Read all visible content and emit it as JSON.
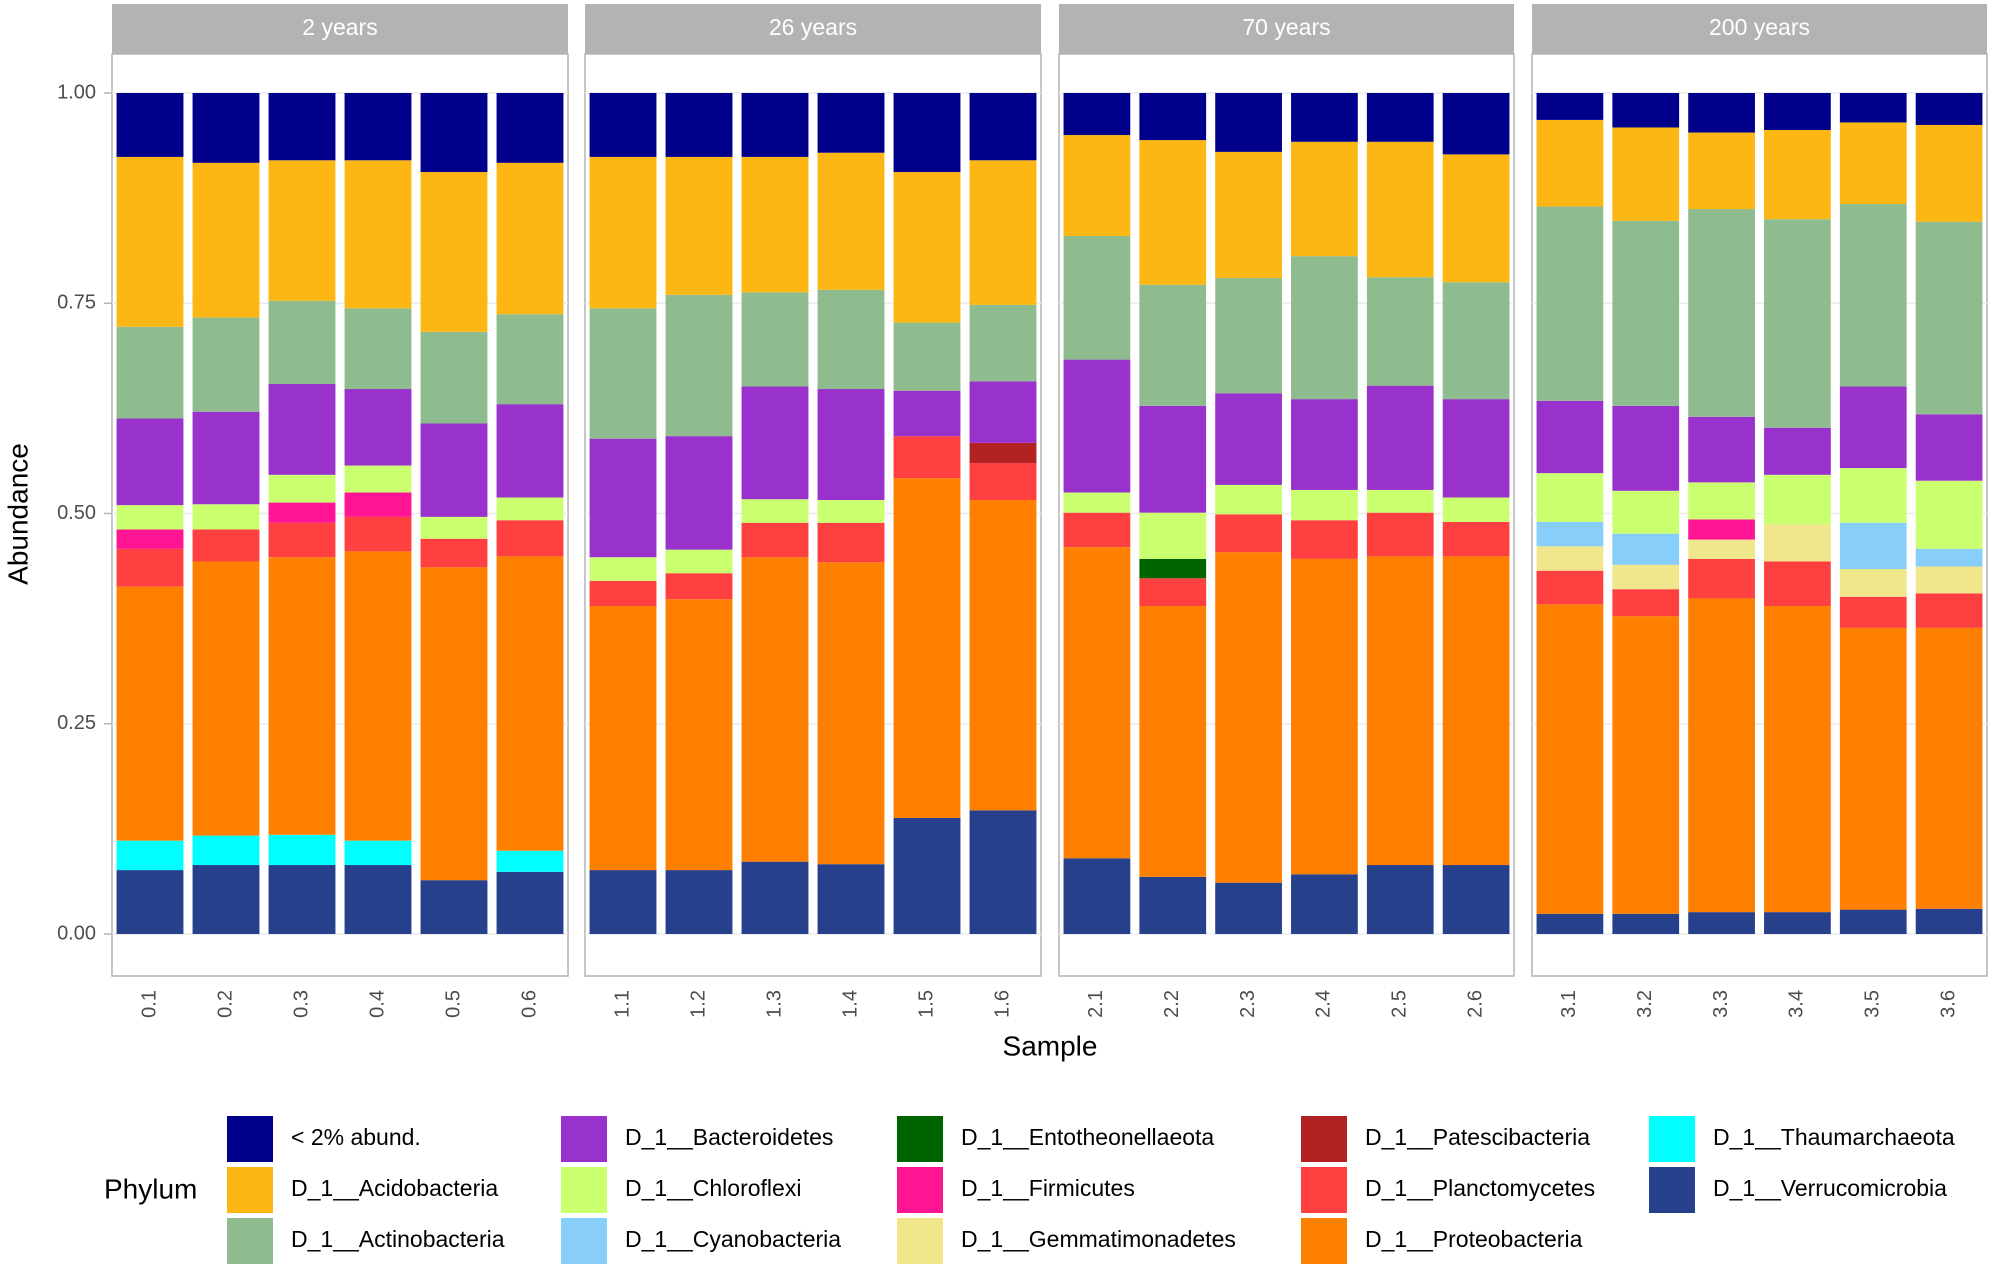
{
  "chart_data": {
    "type": "bar",
    "stacked": true,
    "y_label": "Abundance",
    "x_label": "Sample",
    "legend_title": "Phylum",
    "ylim": [
      0,
      1.0
    ],
    "yticks": [
      {
        "value": 0,
        "label": "0.00"
      },
      {
        "value": 0.25,
        "label": "0.25"
      },
      {
        "value": 0.5,
        "label": "0.50"
      },
      {
        "value": 0.75,
        "label": "0.75"
      },
      {
        "value": 1.0,
        "label": "1.00"
      }
    ],
    "grid": true,
    "facets": [
      {
        "title": "2 years",
        "categories": [
          "0.1",
          "0.2",
          "0.3",
          "0.4",
          "0.5",
          "0.6"
        ],
        "series": [
          {
            "name": "< 2% abund.",
            "color": "#00008B",
            "values": [
              0.076,
              0.083,
              0.08,
              0.08,
              0.094,
              0.083
            ]
          },
          {
            "name": "D_1__Acidobacteria",
            "color": "#FDB714",
            "values": [
              0.202,
              0.184,
              0.167,
              0.176,
              0.19,
              0.18
            ]
          },
          {
            "name": "D_1__Actinobacteria",
            "color": "#8FBC8F",
            "values": [
              0.109,
              0.112,
              0.099,
              0.096,
              0.109,
              0.107
            ]
          },
          {
            "name": "D_1__Bacteroidetes",
            "color": "#9932CC",
            "values": [
              0.103,
              0.11,
              0.108,
              0.091,
              0.111,
              0.111
            ]
          },
          {
            "name": "D_1__Chloroflexi",
            "color": "#CAFF70",
            "values": [
              0.029,
              0.03,
              0.033,
              0.032,
              0.026,
              0.027
            ]
          },
          {
            "name": "D_1__Cyanobacteria",
            "color": "#87CEFA",
            "values": [
              0,
              0,
              0,
              0,
              0,
              0
            ]
          },
          {
            "name": "D_1__Entotheonellaeota",
            "color": "#006400",
            "values": [
              0,
              0,
              0,
              0,
              0,
              0
            ]
          },
          {
            "name": "D_1__Firmicutes",
            "color": "#FF1493",
            "values": [
              0.023,
              0,
              0.024,
              0.029,
              0,
              0
            ]
          },
          {
            "name": "D_1__Gemmatimonadetes",
            "color": "#F0E68C",
            "values": [
              0,
              0,
              0,
              0,
              0,
              0
            ]
          },
          {
            "name": "D_1__Patescibacteria",
            "color": "#B22222",
            "values": [
              0,
              0,
              0,
              0,
              0,
              0
            ]
          },
          {
            "name": "D_1__Planctomycetes",
            "color": "#FF4040",
            "values": [
              0.045,
              0.038,
              0.041,
              0.041,
              0.034,
              0.043
            ]
          },
          {
            "name": "D_1__Proteobacteria",
            "color": "#FF7F00",
            "values": [
              0.302,
              0.326,
              0.33,
              0.344,
              0.372,
              0.35
            ]
          },
          {
            "name": "D_1__Thaumarchaeota",
            "color": "#00FFFF",
            "values": [
              0.035,
              0.035,
              0.036,
              0.029,
              0,
              0.025
            ]
          },
          {
            "name": "D_1__Verrucomicrobia",
            "color": "#27408B",
            "values": [
              0.076,
              0.082,
              0.082,
              0.082,
              0.064,
              0.074
            ]
          }
        ]
      },
      {
        "title": "26 years",
        "categories": [
          "1.1",
          "1.2",
          "1.3",
          "1.4",
          "1.5",
          "1.6"
        ],
        "series": [
          {
            "name": "< 2% abund.",
            "color": "#00008B",
            "values": [
              0.076,
              0.076,
              0.076,
              0.071,
              0.094,
              0.08
            ]
          },
          {
            "name": "D_1__Acidobacteria",
            "color": "#FDB714",
            "values": [
              0.18,
              0.164,
              0.161,
              0.163,
              0.179,
              0.172
            ]
          },
          {
            "name": "D_1__Actinobacteria",
            "color": "#8FBC8F",
            "values": [
              0.155,
              0.168,
              0.112,
              0.118,
              0.081,
              0.091
            ]
          },
          {
            "name": "D_1__Bacteroidetes",
            "color": "#9932CC",
            "values": [
              0.141,
              0.135,
              0.134,
              0.132,
              0.054,
              0.073
            ]
          },
          {
            "name": "D_1__Chloroflexi",
            "color": "#CAFF70",
            "values": [
              0.028,
              0.028,
              0.028,
              0.027,
              0,
              0
            ]
          },
          {
            "name": "D_1__Cyanobacteria",
            "color": "#87CEFA",
            "values": [
              0,
              0,
              0,
              0,
              0,
              0
            ]
          },
          {
            "name": "D_1__Entotheonellaeota",
            "color": "#006400",
            "values": [
              0,
              0,
              0,
              0,
              0,
              0
            ]
          },
          {
            "name": "D_1__Firmicutes",
            "color": "#FF1493",
            "values": [
              0,
              0,
              0,
              0,
              0,
              0
            ]
          },
          {
            "name": "D_1__Gemmatimonadetes",
            "color": "#F0E68C",
            "values": [
              0,
              0,
              0,
              0,
              0,
              0
            ]
          },
          {
            "name": "D_1__Patescibacteria",
            "color": "#B22222",
            "values": [
              0,
              0,
              0,
              0,
              0,
              0.024
            ]
          },
          {
            "name": "D_1__Planctomycetes",
            "color": "#FF4040",
            "values": [
              0.03,
              0.031,
              0.041,
              0.047,
              0.05,
              0.044
            ]
          },
          {
            "name": "D_1__Proteobacteria",
            "color": "#FF7F00",
            "values": [
              0.314,
              0.322,
              0.362,
              0.359,
              0.404,
              0.369
            ]
          },
          {
            "name": "D_1__Thaumarchaeota",
            "color": "#00FFFF",
            "values": [
              0,
              0,
              0,
              0,
              0,
              0
            ]
          },
          {
            "name": "D_1__Verrucomicrobia",
            "color": "#27408B",
            "values": [
              0.076,
              0.076,
              0.086,
              0.083,
              0.138,
              0.147
            ]
          }
        ]
      },
      {
        "title": "70 years",
        "categories": [
          "2.1",
          "2.2",
          "2.3",
          "2.4",
          "2.5",
          "2.6"
        ],
        "series": [
          {
            "name": "< 2% abund.",
            "color": "#00008B",
            "values": [
              0.05,
              0.056,
              0.07,
              0.058,
              0.058,
              0.073
            ]
          },
          {
            "name": "D_1__Acidobacteria",
            "color": "#FDB714",
            "values": [
              0.12,
              0.172,
              0.15,
              0.136,
              0.161,
              0.152
            ]
          },
          {
            "name": "D_1__Actinobacteria",
            "color": "#8FBC8F",
            "values": [
              0.147,
              0.144,
              0.137,
              0.17,
              0.129,
              0.139
            ]
          },
          {
            "name": "D_1__Bacteroidetes",
            "color": "#9932CC",
            "values": [
              0.158,
              0.127,
              0.109,
              0.108,
              0.124,
              0.117
            ]
          },
          {
            "name": "D_1__Chloroflexi",
            "color": "#CAFF70",
            "values": [
              0.024,
              0.055,
              0.035,
              0.036,
              0.027,
              0.029
            ]
          },
          {
            "name": "D_1__Cyanobacteria",
            "color": "#87CEFA",
            "values": [
              0,
              0,
              0,
              0,
              0,
              0
            ]
          },
          {
            "name": "D_1__Entotheonellaeota",
            "color": "#006400",
            "values": [
              0,
              0.023,
              0,
              0,
              0,
              0
            ]
          },
          {
            "name": "D_1__Firmicutes",
            "color": "#FF1493",
            "values": [
              0,
              0,
              0,
              0,
              0,
              0
            ]
          },
          {
            "name": "D_1__Gemmatimonadetes",
            "color": "#F0E68C",
            "values": [
              0,
              0,
              0,
              0,
              0,
              0
            ]
          },
          {
            "name": "D_1__Patescibacteria",
            "color": "#B22222",
            "values": [
              0,
              0,
              0,
              0,
              0,
              0
            ]
          },
          {
            "name": "D_1__Planctomycetes",
            "color": "#FF4040",
            "values": [
              0.041,
              0.033,
              0.045,
              0.046,
              0.052,
              0.041
            ]
          },
          {
            "name": "D_1__Proteobacteria",
            "color": "#FF7F00",
            "values": [
              0.37,
              0.322,
              0.393,
              0.375,
              0.367,
              0.367
            ]
          },
          {
            "name": "D_1__Thaumarchaeota",
            "color": "#00FFFF",
            "values": [
              0,
              0,
              0,
              0,
              0,
              0
            ]
          },
          {
            "name": "D_1__Verrucomicrobia",
            "color": "#27408B",
            "values": [
              0.09,
              0.068,
              0.061,
              0.071,
              0.082,
              0.082
            ]
          }
        ]
      },
      {
        "title": "200 years",
        "categories": [
          "3.1",
          "3.2",
          "3.3",
          "3.4",
          "3.5",
          "3.6"
        ],
        "series": [
          {
            "name": "< 2% abund.",
            "color": "#00008B",
            "values": [
              0.032,
              0.041,
              0.047,
              0.044,
              0.035,
              0.038
            ]
          },
          {
            "name": "D_1__Acidobacteria",
            "color": "#FDB714",
            "values": [
              0.103,
              0.111,
              0.091,
              0.106,
              0.097,
              0.115
            ]
          },
          {
            "name": "D_1__Actinobacteria",
            "color": "#8FBC8F",
            "values": [
              0.231,
              0.22,
              0.247,
              0.248,
              0.217,
              0.229
            ]
          },
          {
            "name": "D_1__Bacteroidetes",
            "color": "#9932CC",
            "values": [
              0.086,
              0.101,
              0.078,
              0.056,
              0.097,
              0.079
            ]
          },
          {
            "name": "D_1__Chloroflexi",
            "color": "#CAFF70",
            "values": [
              0.058,
              0.051,
              0.044,
              0.059,
              0.065,
              0.081
            ]
          },
          {
            "name": "D_1__Cyanobacteria",
            "color": "#87CEFA",
            "values": [
              0.029,
              0.037,
              0,
              0,
              0.055,
              0.021
            ]
          },
          {
            "name": "D_1__Entotheonellaeota",
            "color": "#006400",
            "values": [
              0,
              0,
              0,
              0,
              0,
              0
            ]
          },
          {
            "name": "D_1__Firmicutes",
            "color": "#FF1493",
            "values": [
              0,
              0,
              0.024,
              0,
              0,
              0
            ]
          },
          {
            "name": "D_1__Gemmatimonadetes",
            "color": "#F0E68C",
            "values": [
              0.029,
              0.029,
              0.023,
              0.044,
              0.033,
              0.032
            ]
          },
          {
            "name": "D_1__Patescibacteria",
            "color": "#B22222",
            "values": [
              0,
              0,
              0,
              0,
              0,
              0
            ]
          },
          {
            "name": "D_1__Planctomycetes",
            "color": "#FF4040",
            "values": [
              0.04,
              0.032,
              0.047,
              0.053,
              0.037,
              0.041
            ]
          },
          {
            "name": "D_1__Proteobacteria",
            "color": "#FF7F00",
            "values": [
              0.368,
              0.354,
              0.373,
              0.364,
              0.335,
              0.334
            ]
          },
          {
            "name": "D_1__Thaumarchaeota",
            "color": "#00FFFF",
            "values": [
              0,
              0,
              0,
              0,
              0,
              0
            ]
          },
          {
            "name": "D_1__Verrucomicrobia",
            "color": "#27408B",
            "values": [
              0.024,
              0.024,
              0.026,
              0.026,
              0.029,
              0.03
            ]
          }
        ]
      }
    ]
  }
}
